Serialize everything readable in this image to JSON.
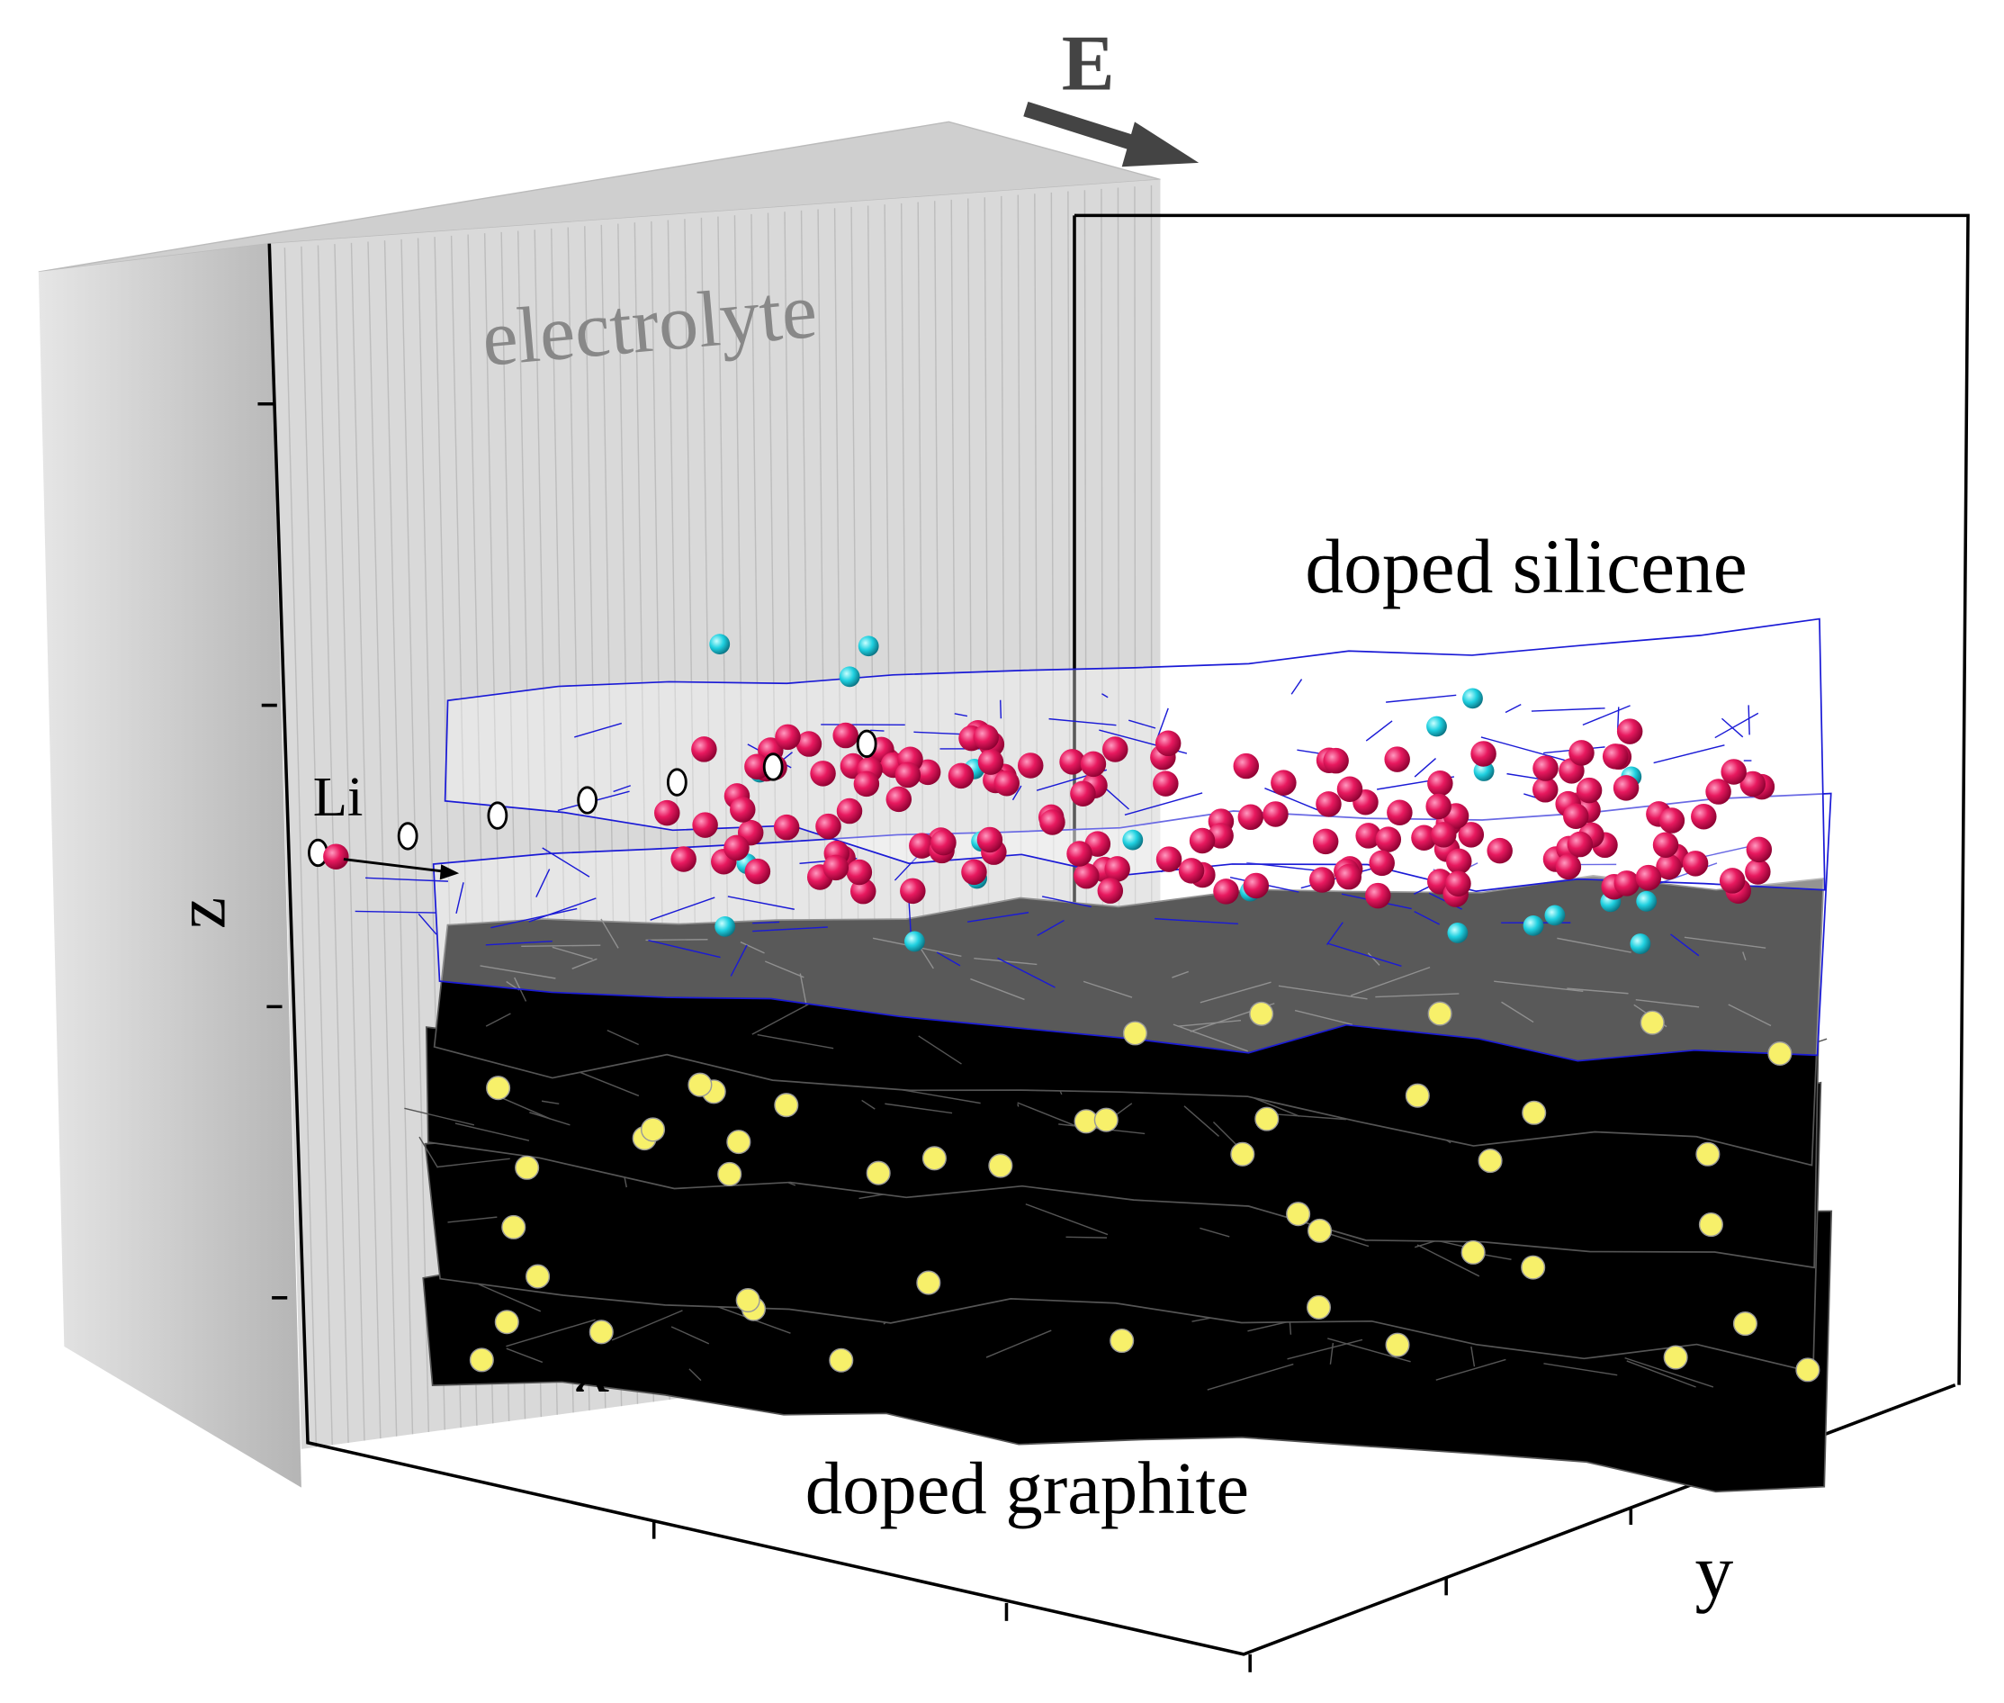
{
  "labels": {
    "field": "E",
    "electrolyte": "electrolyte",
    "silicene": "doped silicene",
    "lithium": "Li",
    "z_axis": "z",
    "x_axis": "x",
    "y_axis": "y",
    "graphite": "doped graphite"
  }
}
